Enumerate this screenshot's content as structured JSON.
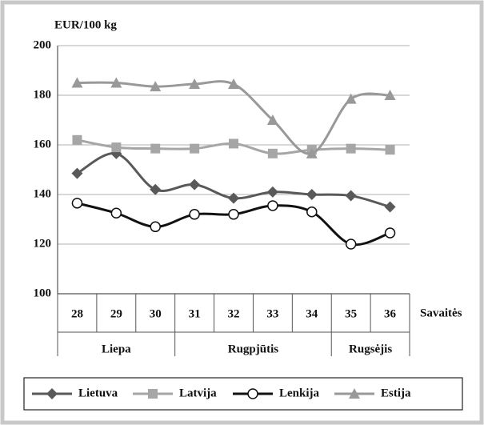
{
  "chart_data": {
    "type": "line",
    "y_label": "EUR/100 kg",
    "x_label": "Savaitės",
    "categories": [
      "28",
      "29",
      "30",
      "31",
      "32",
      "33",
      "34",
      "35",
      "36"
    ],
    "x_groups": [
      {
        "label": "Liepa",
        "span": 3
      },
      {
        "label": "Rugpjūtis",
        "span": 4
      },
      {
        "label": "Rugsėjis",
        "span": 2
      }
    ],
    "ylim": [
      100,
      200
    ],
    "yticks": [
      100,
      120,
      140,
      160,
      180,
      200
    ],
    "grid": true,
    "legend": "bottom",
    "series": [
      {
        "name": "Lietuva",
        "color": "#595959",
        "marker": "diamond",
        "values": [
          148.5,
          156.5,
          142,
          144,
          138.5,
          141,
          140,
          139.5,
          135
        ]
      },
      {
        "name": "Latvija",
        "color": "#a6a6a6",
        "marker": "square",
        "values": [
          162,
          159,
          158.5,
          158.5,
          160.5,
          156.5,
          158,
          158.5,
          158
        ]
      },
      {
        "name": "Lenkija",
        "color": "#111111",
        "marker": "circle",
        "values": [
          136.5,
          132.5,
          127,
          132,
          132,
          135.5,
          133,
          120,
          124.5
        ]
      },
      {
        "name": "Estija",
        "color": "#999999",
        "marker": "triangle",
        "values": [
          185,
          185,
          183.5,
          184.5,
          184.5,
          170,
          156.5,
          178.5,
          180
        ]
      }
    ]
  }
}
